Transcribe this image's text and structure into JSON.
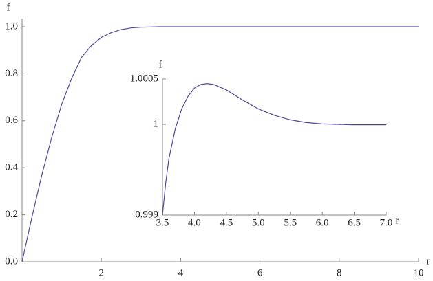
{
  "chart_data": [
    {
      "type": "line",
      "x_label": "r",
      "y_label": "f",
      "x": [
        0,
        0.25,
        0.5,
        0.75,
        1,
        1.25,
        1.5,
        1.75,
        2,
        2.25,
        2.5,
        2.75,
        3,
        3.5,
        4,
        5,
        6,
        7,
        8,
        9,
        10
      ],
      "values": [
        0,
        0.19,
        0.37,
        0.53,
        0.67,
        0.78,
        0.87,
        0.92,
        0.955,
        0.975,
        0.988,
        0.995,
        0.998,
        1.0,
        1.0,
        1.0,
        1.0,
        1.0,
        1.0,
        1.0,
        1.0
      ],
      "color": "#4a4aa0",
      "xlim": [
        0,
        10
      ],
      "ylim": [
        0,
        1
      ],
      "xticks": [
        2,
        4,
        6,
        8,
        10
      ],
      "yticks": [
        {
          "value": 0,
          "label": "0.0"
        },
        0.2,
        0.4,
        0.6,
        0.8,
        {
          "value": 1,
          "label": "1.0"
        }
      ]
    },
    {
      "type": "line",
      "x_label": "r",
      "y_label": "f",
      "x": [
        3.5,
        3.55,
        3.6,
        3.7,
        3.8,
        3.9,
        4.0,
        4.1,
        4.2,
        4.3,
        4.5,
        4.75,
        5.0,
        5.25,
        5.5,
        5.75,
        6.0,
        6.5,
        7.0
      ],
      "values": [
        0.999,
        0.99935,
        0.99962,
        0.99995,
        1.00017,
        1.00031,
        1.0004,
        1.00044,
        1.00045,
        1.00044,
        1.00038,
        1.00027,
        1.00017,
        1.0001,
        1.00005,
        1.00002,
        1.000005,
        0.999995,
        0.999995
      ],
      "color": "#4a4aa0",
      "xlim": [
        3.5,
        7.0
      ],
      "ylim": [
        0.999,
        1.0005
      ],
      "xticks": [
        3.5,
        {
          "value": 4,
          "label": "4.0"
        },
        4.5,
        {
          "value": 5,
          "label": "5.0"
        },
        5.5,
        {
          "value": 6,
          "label": "6.0"
        },
        6.5,
        {
          "value": 7,
          "label": "7.0"
        }
      ],
      "yticks": [
        0.999,
        1,
        1.0005
      ]
    }
  ]
}
